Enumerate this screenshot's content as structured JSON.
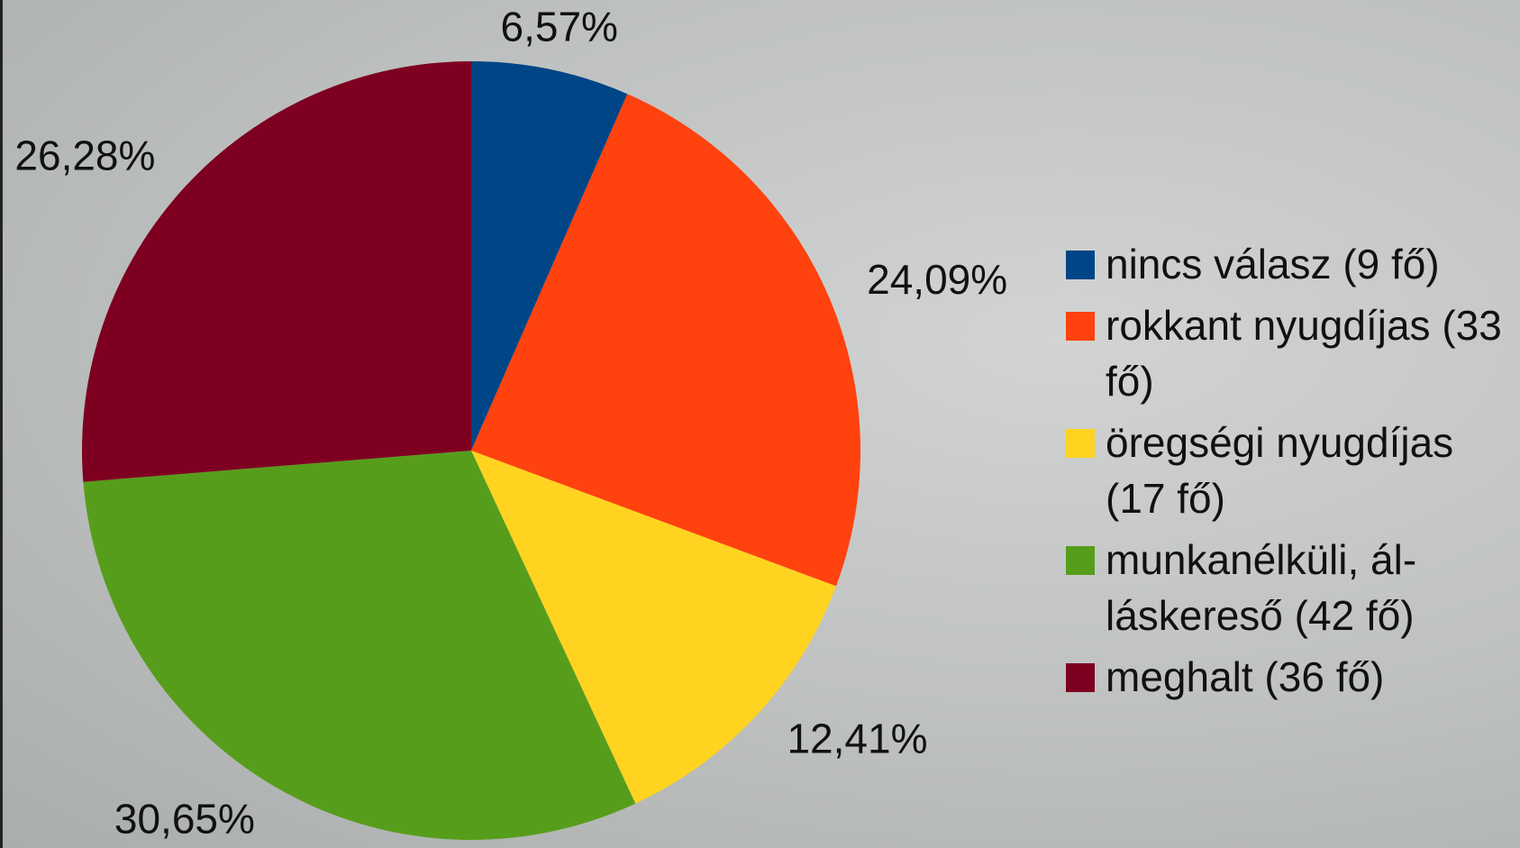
{
  "chart_data": {
    "type": "pie",
    "categories": [
      "nincs válasz (9 fő)",
      "rokkant nyugdíjas (33 fő)",
      "öregségi nyugdíjas (17 fő)",
      "munkanélküli, ál­láskereső (42 fő)",
      "meghalt (36 fő)"
    ],
    "values": [
      6.57,
      24.09,
      12.41,
      30.65,
      26.28
    ],
    "value_labels": [
      "6,57%",
      "24,09%",
      "12,41%",
      "30,65%",
      "26,28%"
    ],
    "colors": [
      "#004586",
      "#ff420e",
      "#ffd320",
      "#579d1c",
      "#7e0021"
    ],
    "legend": "right"
  }
}
